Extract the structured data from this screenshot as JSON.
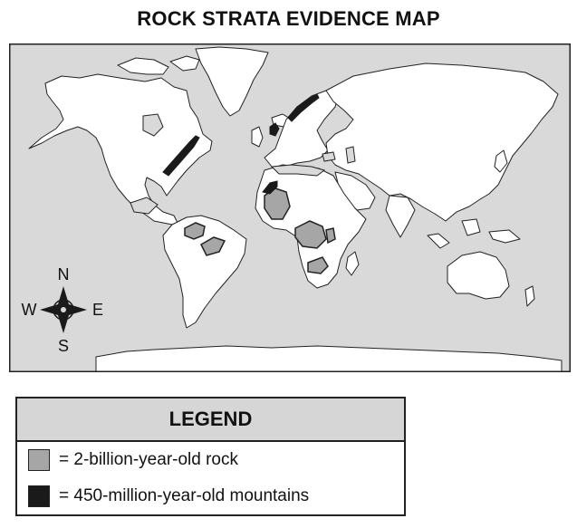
{
  "title": "ROCK STRATA EVIDENCE MAP",
  "compass": {
    "n": "N",
    "s": "S",
    "e": "E",
    "w": "W"
  },
  "legend": {
    "heading": "LEGEND",
    "items": [
      {
        "label": "= 2-billion-year-old rock",
        "color": "#a6a6a6"
      },
      {
        "label": "= 450-million-year-old mountains",
        "color": "#1a1a1a"
      }
    ]
  },
  "colors": {
    "ocean": "#d9d9d9",
    "land": "#ffffff",
    "outline": "#222222"
  }
}
